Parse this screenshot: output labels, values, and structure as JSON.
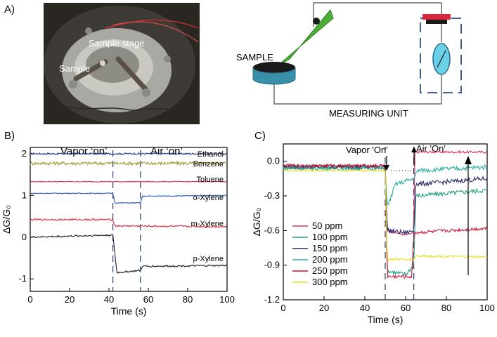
{
  "panel_a": {
    "label": "A)",
    "photo_labels": {
      "stage": "Sample stage",
      "sample": "Sample"
    },
    "schematic_labels": {
      "sample": "SAMPLE",
      "unit": "MEASURING UNIT"
    }
  },
  "panel_b": {
    "label": "B)",
    "annotations": {
      "vapor": "Vapor ‘on’",
      "air": "Air ‘on’"
    }
  },
  "panel_c": {
    "label": "C)",
    "annotations": {
      "vapor": "Vapor 'On'",
      "air": "Air 'On'"
    }
  },
  "colors": {
    "ethanol": "#1a2a7a",
    "benzene": "#9a9a30",
    "toluene": "#d0305a",
    "oxylene": "#2a5ca8",
    "mxylene": "#d8283c",
    "pxylene": "#1a1a2a",
    "ppm50": "#e03060",
    "ppm100": "#22a080",
    "ppm150": "#2a2a6a",
    "ppm200": "#30b0a0",
    "ppm250": "#cc1030",
    "ppm300": "#e8e020"
  },
  "chart_data": [
    {
      "type": "line",
      "xlabel": "Time (s)",
      "ylabel": "ΔG/G₀",
      "xlim": [
        0,
        100
      ],
      "ylim": [
        -1.3,
        2.15
      ],
      "xticks": [
        "0",
        "20",
        "40",
        "60",
        "80",
        "100"
      ],
      "yticks": [
        "-1",
        "0",
        "1",
        "2"
      ],
      "events": [
        42,
        56
      ],
      "series": [
        {
          "name": "Ethanol",
          "color_key": "ethanol",
          "noise": 0.02,
          "points": [
            [
              0,
              2.0
            ],
            [
              100,
              2.0
            ]
          ]
        },
        {
          "name": "Benzene",
          "color_key": "benzene",
          "noise": 0.04,
          "points": [
            [
              0,
              1.77
            ],
            [
              100,
              1.77
            ]
          ]
        },
        {
          "name": "Toluene",
          "color_key": "toluene",
          "noise": 0.01,
          "points": [
            [
              0,
              1.33
            ],
            [
              100,
              1.33
            ]
          ]
        },
        {
          "name": "o-Xylene",
          "color_key": "oxylene",
          "noise": 0.01,
          "points": [
            [
              0,
              1.05
            ],
            [
              42,
              1.05
            ],
            [
              43,
              0.82
            ],
            [
              56,
              0.82
            ],
            [
              57,
              0.98
            ],
            [
              100,
              1.0
            ]
          ]
        },
        {
          "name": "m-Xylene",
          "color_key": "mxylene",
          "noise": 0.02,
          "points": [
            [
              0,
              0.42
            ],
            [
              42,
              0.42
            ],
            [
              43,
              0.27
            ],
            [
              100,
              0.25
            ]
          ]
        },
        {
          "name": "p-Xylene",
          "color_key": "pxylene",
          "noise": 0.02,
          "points": [
            [
              0,
              0.0
            ],
            [
              42,
              0.05
            ],
            [
              44,
              -0.85
            ],
            [
              56,
              -0.8
            ],
            [
              57,
              -0.7
            ],
            [
              100,
              -0.68
            ]
          ]
        }
      ]
    },
    {
      "type": "line",
      "xlabel": "Time (s)",
      "ylabel": "ΔG/G₀",
      "xlim": [
        0,
        100
      ],
      "ylim": [
        -1.2,
        0.15
      ],
      "xticks": [
        "0",
        "20",
        "40",
        "60",
        "80",
        "100"
      ],
      "yticks": [
        "0.0",
        "-0.3",
        "-0.6",
        "-0.9",
        "-1.2"
      ],
      "events": [
        50,
        64
      ],
      "series": [
        {
          "name": "50 ppm",
          "color_key": "ppm50",
          "noise": 0.01,
          "points": [
            [
              0,
              -0.04
            ],
            [
              50,
              -0.04
            ],
            [
              51,
              -0.6
            ],
            [
              60,
              -0.64
            ],
            [
              64,
              -0.62
            ],
            [
              64.5,
              0.08
            ],
            [
              100,
              0.08
            ]
          ]
        },
        {
          "name": "100 ppm",
          "color_key": "ppm100",
          "noise": 0.02,
          "points": [
            [
              0,
              -0.05
            ],
            [
              50,
              -0.05
            ],
            [
              51,
              -0.95
            ],
            [
              60,
              -0.98
            ],
            [
              64,
              -0.9
            ],
            [
              65,
              -0.3
            ],
            [
              100,
              -0.25
            ]
          ]
        },
        {
          "name": "150 ppm",
          "color_key": "ppm150",
          "noise": 0.02,
          "points": [
            [
              0,
              -0.05
            ],
            [
              50,
              -0.05
            ],
            [
              51,
              -0.6
            ],
            [
              60,
              -0.62
            ],
            [
              64,
              -0.6
            ],
            [
              65,
              -0.2
            ],
            [
              100,
              -0.15
            ]
          ]
        },
        {
          "name": "200 ppm",
          "color_key": "ppm200",
          "noise": 0.02,
          "points": [
            [
              0,
              -0.06
            ],
            [
              50,
              -0.06
            ],
            [
              51,
              -0.4
            ],
            [
              55,
              -0.2
            ],
            [
              64,
              -0.15
            ],
            [
              66,
              -0.08
            ],
            [
              100,
              -0.05
            ]
          ]
        },
        {
          "name": "250 ppm",
          "color_key": "ppm250",
          "noise": 0.015,
          "points": [
            [
              0,
              -0.04
            ],
            [
              50,
              -0.04
            ],
            [
              51,
              -1.0
            ],
            [
              63,
              -1.0
            ],
            [
              64,
              -0.62
            ],
            [
              100,
              -0.58
            ]
          ]
        },
        {
          "name": "300 ppm",
          "color_key": "ppm300",
          "noise": 0.01,
          "points": [
            [
              0,
              -0.08
            ],
            [
              50,
              -0.08
            ],
            [
              51,
              -0.85
            ],
            [
              64,
              -0.85
            ],
            [
              65,
              -0.82
            ],
            [
              100,
              -0.83
            ]
          ]
        }
      ]
    }
  ]
}
